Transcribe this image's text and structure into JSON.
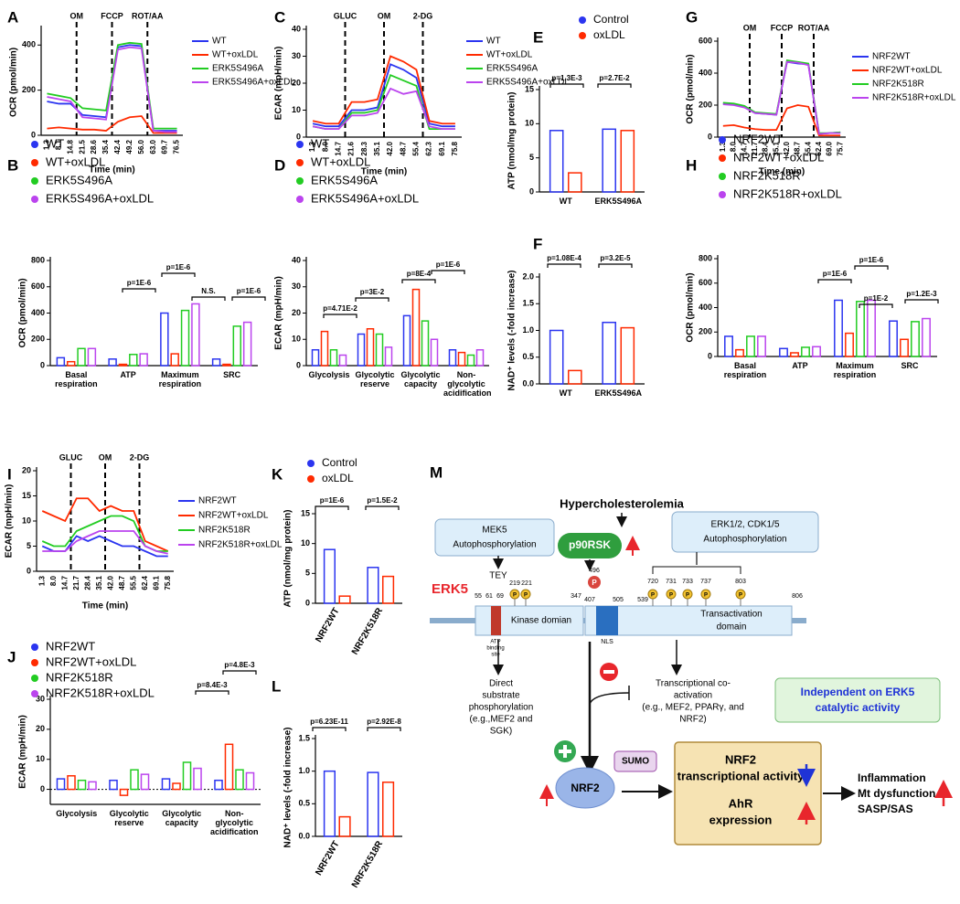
{
  "chart_data": [
    {
      "panel": "A",
      "type": "line",
      "ylabel": "OCR (pmol/min)",
      "xlabel": "Time (min)",
      "categories": [
        "1.3",
        "8.1",
        "14.8",
        "21.5",
        "28.6",
        "35.4",
        "42.4",
        "49.2",
        "56.0",
        "63.0",
        "69.7",
        "76.5"
      ],
      "annotations": [
        "OM",
        "FCCP",
        "ROT/AA"
      ],
      "ylim": [
        0,
        470
      ],
      "yticks": [
        0,
        200,
        400
      ],
      "series": [
        {
          "name": "WT",
          "color": "#2b35f0",
          "values": [
            150,
            140,
            140,
            90,
            85,
            80,
            390,
            400,
            395,
            20,
            20,
            20
          ]
        },
        {
          "name": "WT+oxLDL",
          "color": "#ff2a00",
          "values": [
            30,
            35,
            30,
            25,
            25,
            20,
            60,
            80,
            85,
            10,
            10,
            10
          ]
        },
        {
          "name": "ERK5S496A",
          "color": "#22cc22",
          "values": [
            185,
            175,
            165,
            120,
            115,
            110,
            400,
            410,
            405,
            30,
            30,
            30
          ]
        },
        {
          "name": "ERK5S496A+oxLDL",
          "color": "#bb44ee",
          "values": [
            170,
            160,
            150,
            80,
            75,
            70,
            380,
            390,
            385,
            20,
            15,
            15
          ]
        }
      ]
    },
    {
      "panel": "B",
      "type": "bar",
      "ylabel": "OCR (pmol/min)",
      "categories": [
        "Basal respiration",
        "ATP",
        "Maximum respiration",
        "SRC"
      ],
      "annotations": [
        "p=1E-6",
        "p=1E-6",
        "N.S.",
        "p=1E-6"
      ],
      "ylim": [
        0,
        800
      ],
      "yticks": [
        0,
        200,
        400,
        600,
        800
      ],
      "series": [
        {
          "name": "WT",
          "color": "#2b35f0",
          "values": [
            60,
            50,
            400,
            50
          ]
        },
        {
          "name": "WT+oxLDL",
          "color": "#ff2a00",
          "values": [
            30,
            10,
            90,
            10
          ]
        },
        {
          "name": "ERK5S496A",
          "color": "#22cc22",
          "values": [
            130,
            85,
            420,
            300
          ]
        },
        {
          "name": "ERK5S496A+oxLDL",
          "color": "#bb44ee",
          "values": [
            130,
            90,
            470,
            330
          ]
        }
      ]
    },
    {
      "panel": "C",
      "type": "line",
      "ylabel": "ECAR (mpH/min)",
      "xlabel": "Time (min)",
      "categories": [
        "1.3",
        "8.0",
        "14.7",
        "21.6",
        "28.3",
        "35.1",
        "42.0",
        "48.7",
        "55.4",
        "62.3",
        "69.1",
        "75.8"
      ],
      "annotations": [
        "GLUC",
        "OM",
        "2-DG"
      ],
      "ylim": [
        0,
        40
      ],
      "yticks": [
        0,
        10,
        20,
        30,
        40
      ],
      "series": [
        {
          "name": "WT",
          "color": "#2b35f0",
          "values": [
            5,
            4,
            4,
            10,
            10,
            11,
            27,
            25,
            22,
            5,
            4,
            4
          ]
        },
        {
          "name": "WT+oxLDL",
          "color": "#ff2a00",
          "values": [
            6,
            5,
            5,
            13,
            13,
            14,
            30,
            28,
            25,
            6,
            5,
            5
          ]
        },
        {
          "name": "ERK5S496A",
          "color": "#22cc22",
          "values": [
            4,
            3,
            3,
            9,
            9,
            10,
            23,
            21,
            19,
            3,
            3,
            3
          ]
        },
        {
          "name": "ERK5S496A+oxLDL",
          "color": "#bb44ee",
          "values": [
            4,
            3,
            3,
            8,
            8,
            9,
            18,
            16,
            17,
            4,
            3,
            3
          ]
        }
      ]
    },
    {
      "panel": "D",
      "type": "bar",
      "ylabel": "ECAR (mpH/min)",
      "categories": [
        "Glycolysis",
        "Glycolytic reserve",
        "Glycolytic capacity",
        "Non-glycolytic acidification"
      ],
      "annotations": [
        "p=4.71E-2",
        "p=3E-2",
        "p=8E-4",
        "p=1E-6"
      ],
      "ylim": [
        0,
        40
      ],
      "yticks": [
        0,
        10,
        20,
        30,
        40
      ],
      "series": [
        {
          "name": "WT",
          "color": "#2b35f0",
          "values": [
            6,
            12,
            19,
            6
          ]
        },
        {
          "name": "WT+oxLDL",
          "color": "#ff2a00",
          "values": [
            13,
            14,
            29,
            5
          ]
        },
        {
          "name": "ERK5S496A",
          "color": "#22cc22",
          "values": [
            6,
            12,
            17,
            4
          ]
        },
        {
          "name": "ERK5S496A+oxLDL",
          "color": "#bb44ee",
          "values": [
            4,
            7,
            10,
            6
          ]
        }
      ]
    },
    {
      "panel": "E",
      "type": "bar",
      "ylabel": "ATP (nmol/mg protein)",
      "categories": [
        "WT",
        "ERK5S496A"
      ],
      "annotations": [
        "p=1.3E-3",
        "p=2.7E-2"
      ],
      "ylim": [
        0,
        15
      ],
      "yticks": [
        0,
        5,
        10,
        15
      ],
      "series": [
        {
          "name": "Control",
          "color": "#2b35f0",
          "values": [
            9,
            9.2
          ]
        },
        {
          "name": "oxLDL",
          "color": "#ff2a00",
          "values": [
            2.8,
            9
          ]
        }
      ]
    },
    {
      "panel": "F",
      "type": "bar",
      "ylabel": "NAD⁺ levels (-fold increase)",
      "categories": [
        "WT",
        "ERK5S496A"
      ],
      "annotations": [
        "p=1.08E-4",
        "p=3.2E-5"
      ],
      "ylim": [
        0,
        2
      ],
      "yticks": [
        {
          "value": 0,
          "label": "0.0"
        },
        0.5,
        {
          "value": 1,
          "label": "1.0"
        },
        1.5,
        {
          "value": 2,
          "label": "2.0"
        }
      ],
      "series": [
        {
          "name": "Control",
          "color": "#2b35f0",
          "values": [
            1.0,
            1.15
          ]
        },
        {
          "name": "oxLDL",
          "color": "#ff2a00",
          "values": [
            0.25,
            1.05
          ]
        }
      ]
    },
    {
      "panel": "G",
      "type": "line",
      "ylabel": "OCR (pmol/min)",
      "xlabel": "Time (min)",
      "categories": [
        "1.3",
        "8.0",
        "14.7",
        "21.7",
        "28.4",
        "35.1",
        "42.0",
        "48.7",
        "55.4",
        "62.4",
        "69.0",
        "75.7"
      ],
      "annotations": [
        "OM",
        "FCCP",
        "ROT/AA"
      ],
      "ylim": [
        0,
        600
      ],
      "yticks": [
        0,
        200,
        400,
        600
      ],
      "series": [
        {
          "name": "NRF2WT",
          "color": "#2b35f0",
          "values": [
            210,
            205,
            190,
            150,
            145,
            140,
            470,
            460,
            455,
            20,
            25,
            30
          ]
        },
        {
          "name": "NRF2WT+oxLDL",
          "color": "#ff2a00",
          "values": [
            70,
            75,
            60,
            50,
            45,
            45,
            180,
            200,
            190,
            10,
            10,
            10
          ]
        },
        {
          "name": "NRF2K518R",
          "color": "#22cc22",
          "values": [
            215,
            210,
            195,
            155,
            150,
            145,
            480,
            470,
            460,
            25,
            25,
            30
          ]
        },
        {
          "name": "NRF2K518R+oxLDL",
          "color": "#bb44ee",
          "values": [
            205,
            200,
            185,
            150,
            145,
            140,
            470,
            465,
            450,
            20,
            25,
            25
          ]
        }
      ]
    },
    {
      "panel": "H",
      "type": "bar",
      "ylabel": "OCR (pmol/min)",
      "categories": [
        "Basal respiration",
        "ATP",
        "Maximum respiration",
        "SRC"
      ],
      "annotations": [
        "p=1E-6",
        "p=1E-6",
        "p=1E-2",
        "p=1.2E-3"
      ],
      "ylim": [
        0,
        800
      ],
      "yticks": [
        0,
        200,
        400,
        600,
        800
      ],
      "series": [
        {
          "name": "NRF2WT",
          "color": "#2b35f0",
          "values": [
            165,
            65,
            460,
            290
          ]
        },
        {
          "name": "NRF2WT+oxLDL",
          "color": "#ff2a00",
          "values": [
            55,
            30,
            190,
            140
          ]
        },
        {
          "name": "NRF2K518R",
          "color": "#22cc22",
          "values": [
            165,
            75,
            450,
            285
          ]
        },
        {
          "name": "NRF2K518R+oxLDL",
          "color": "#bb44ee",
          "values": [
            165,
            80,
            460,
            310
          ]
        }
      ]
    },
    {
      "panel": "I",
      "type": "line",
      "ylabel": "ECAR (mpH/min)",
      "xlabel": "Time (min)",
      "categories": [
        "1.3",
        "8.0",
        "14.7",
        "21.7",
        "28.4",
        "35.1",
        "42.0",
        "48.7",
        "55.5",
        "62.4",
        "69.1",
        "75.8"
      ],
      "annotations": [
        "GLUC",
        "OM",
        "2-DG"
      ],
      "ylim": [
        0,
        20
      ],
      "yticks": [
        0,
        5,
        10,
        15,
        20
      ],
      "series": [
        {
          "name": "NRF2WT",
          "color": "#2b35f0",
          "values": [
            5,
            4,
            4,
            7,
            6,
            7,
            6,
            5,
            5,
            4,
            3,
            3
          ]
        },
        {
          "name": "NRF2WT+oxLDL",
          "color": "#ff2a00",
          "values": [
            12,
            11,
            10,
            14.5,
            14.5,
            12,
            13,
            12,
            12,
            6,
            5,
            4
          ]
        },
        {
          "name": "NRF2K518R",
          "color": "#22cc22",
          "values": [
            6,
            5,
            5,
            8,
            9,
            10,
            11,
            11,
            10,
            5,
            4,
            4
          ]
        },
        {
          "name": "NRF2K518R+oxLDL",
          "color": "#bb44ee",
          "values": [
            4,
            4,
            4,
            6,
            7,
            8,
            8,
            8,
            8,
            5,
            4,
            3.5
          ]
        }
      ]
    },
    {
      "panel": "J",
      "type": "bar",
      "ylabel": "ECAR (mpH/min)",
      "categories": [
        "Glycolysis",
        "Glycolytic reserve",
        "Glycolytic capacity",
        "Non-glycolytic acidification"
      ],
      "annotations": [
        "p=8.4E-3",
        "p=4.8E-3"
      ],
      "ylim": [
        -5,
        30
      ],
      "yticks": [
        0,
        10,
        20,
        30
      ],
      "series": [
        {
          "name": "NRF2WT",
          "color": "#2b35f0",
          "values": [
            3.5,
            3,
            3.5,
            3
          ]
        },
        {
          "name": "NRF2WT+oxLDL",
          "color": "#ff2a00",
          "values": [
            4.5,
            -2,
            2,
            15
          ]
        },
        {
          "name": "NRF2K518R",
          "color": "#22cc22",
          "values": [
            3,
            6.5,
            9,
            6.5
          ]
        },
        {
          "name": "NRF2K518R+oxLDL",
          "color": "#bb44ee",
          "values": [
            2.5,
            5,
            7,
            5.5
          ]
        }
      ]
    },
    {
      "panel": "K",
      "type": "bar",
      "ylabel": "ATP (nmol/mg protein)",
      "categories": [
        "NRF2WT",
        "NRF2K518R"
      ],
      "annotations": [
        "p=1E-6",
        "p=1.5E-2"
      ],
      "ylim": [
        0,
        15
      ],
      "yticks": [
        0,
        5,
        10,
        15
      ],
      "series": [
        {
          "name": "Control",
          "color": "#2b35f0",
          "values": [
            9,
            6
          ]
        },
        {
          "name": "oxLDL",
          "color": "#ff2a00",
          "values": [
            1.2,
            4.5
          ]
        }
      ]
    },
    {
      "panel": "L",
      "type": "bar",
      "ylabel": "NAD⁺ levels (-fold increase)",
      "categories": [
        "NRF2WT",
        "NRF2K518R"
      ],
      "annotations": [
        "p=6.23E-11",
        "p=2.92E-8"
      ],
      "ylim": [
        0,
        1.5
      ],
      "yticks": [
        {
          "value": 0,
          "label": "0.0"
        },
        0.5,
        {
          "value": 1,
          "label": "1.0"
        },
        1.5
      ],
      "series": [
        {
          "name": "Control",
          "color": "#2b35f0",
          "values": [
            1.0,
            0.98
          ]
        },
        {
          "name": "oxLDL",
          "color": "#ff2a00",
          "values": [
            0.3,
            0.83
          ]
        }
      ]
    }
  ],
  "diagram": {
    "panel": "M",
    "trigger": "Hypercholesterolemia",
    "mek5": [
      "MEK5",
      "Autophosphorylation"
    ],
    "p90rsk": "p90RSK",
    "erk12": [
      "ERK1/2, CDK1/5",
      "Autophosphorylation"
    ],
    "tey": "TEY",
    "protein": "ERK5",
    "residues": [
      "55",
      "61",
      "69",
      "219",
      "221",
      "347",
      "496",
      "407",
      "505",
      "539",
      "720",
      "731",
      "733",
      "737",
      "803",
      "806"
    ],
    "phospho": "P",
    "atp_site": [
      "ATP",
      "binding",
      "site"
    ],
    "kinase_domain": "Kinase domian",
    "nls": "NLS",
    "transactivation": [
      "Transactivation",
      "domain"
    ],
    "direct": [
      "Direct",
      "substrate",
      "phosphorylation",
      "(e.g.,MEF2 and",
      "SGK)"
    ],
    "coactivation": [
      "Transcriptional co-",
      "activation",
      "(e.g., MEF2, PPARγ, and",
      "NRF2)"
    ],
    "independent": [
      "Independent on ERK5",
      "catalytic activity"
    ],
    "sumo": "SUMO",
    "nrf2": "NRF2",
    "nrf2_activity": [
      "NRF2",
      "transcriptional activity"
    ],
    "ahr": [
      "AhR",
      "expression"
    ],
    "outcomes": [
      "Inflammation",
      "Mt dysfunction",
      "SASP/SAS"
    ]
  }
}
